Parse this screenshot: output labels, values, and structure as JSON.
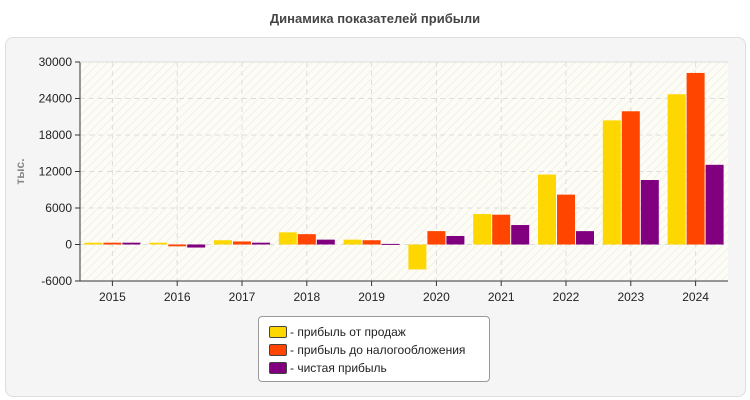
{
  "chart_data": {
    "type": "bar",
    "title": "Динамика показателей прибыли",
    "ylabel": "тыс.",
    "xlabel": "",
    "ylim": [
      -6000,
      30000
    ],
    "yticks": [
      -6000,
      0,
      6000,
      12000,
      18000,
      24000,
      30000
    ],
    "grid": true,
    "legend_position": "bottom",
    "categories": [
      "2015",
      "2016",
      "2017",
      "2018",
      "2019",
      "2020",
      "2021",
      "2022",
      "2023",
      "2024"
    ],
    "series": [
      {
        "name": "- прибыль от продаж",
        "color": "#FFD700",
        "values": [
          300,
          300,
          700,
          2000,
          800,
          -4100,
          5000,
          11500,
          20400,
          24700
        ]
      },
      {
        "name": "- прибыль до налогообложения",
        "color": "#FF4500",
        "values": [
          300,
          -300,
          500,
          1700,
          700,
          2200,
          4900,
          8200,
          21900,
          28200
        ]
      },
      {
        "name": "- чистая прибыль",
        "color": "#800080",
        "values": [
          300,
          -500,
          300,
          800,
          100,
          1400,
          3200,
          2200,
          10600,
          13100
        ]
      }
    ]
  }
}
